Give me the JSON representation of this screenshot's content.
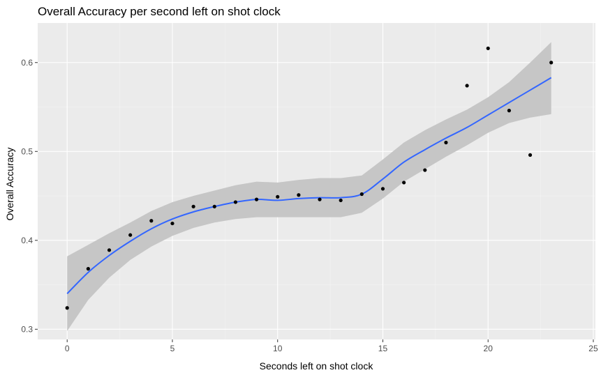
{
  "chart_data": {
    "type": "scatter",
    "title": "Overall Accuracy per second left on shot clock",
    "xlabel": "Seconds left on shot clock",
    "ylabel": "Overall Accuracy",
    "xlim": [
      -1.4,
      25.1
    ],
    "ylim": [
      0.2885,
      0.6445
    ],
    "x_ticks": [
      0,
      5,
      10,
      15,
      20,
      25
    ],
    "x_tick_labels": [
      "0",
      "5",
      "10",
      "15",
      "20",
      "25"
    ],
    "y_ticks": [
      0.3,
      0.4,
      0.5,
      0.6
    ],
    "y_tick_labels": [
      "0.3",
      "0.4",
      "0.5",
      "0.6"
    ],
    "grid": true,
    "points": {
      "x": [
        0,
        1,
        2,
        3,
        4,
        5,
        6,
        7,
        8,
        9,
        10,
        11,
        12,
        13,
        14,
        15,
        16,
        17,
        18,
        19,
        20,
        21,
        22,
        23
      ],
      "y": [
        0.324,
        0.368,
        0.389,
        0.406,
        0.422,
        0.419,
        0.438,
        0.438,
        0.443,
        0.446,
        0.449,
        0.451,
        0.446,
        0.445,
        0.452,
        0.458,
        0.465,
        0.479,
        0.51,
        0.574,
        0.616,
        0.546,
        0.496,
        0.6
      ]
    },
    "smooth": {
      "x": [
        0,
        1,
        2,
        3,
        4,
        5,
        6,
        7,
        8,
        9,
        10,
        11,
        12,
        13,
        14,
        15,
        16,
        17,
        18,
        19,
        20,
        21,
        22,
        23
      ],
      "y": [
        0.34,
        0.364,
        0.383,
        0.399,
        0.413,
        0.424,
        0.432,
        0.438,
        0.443,
        0.446,
        0.445,
        0.447,
        0.448,
        0.448,
        0.452,
        0.469,
        0.488,
        0.502,
        0.515,
        0.527,
        0.541,
        0.555,
        0.569,
        0.583
      ],
      "lower": [
        0.298,
        0.333,
        0.358,
        0.378,
        0.393,
        0.405,
        0.414,
        0.42,
        0.424,
        0.426,
        0.426,
        0.426,
        0.426,
        0.426,
        0.431,
        0.447,
        0.466,
        0.48,
        0.494,
        0.507,
        0.521,
        0.532,
        0.538,
        0.542
      ],
      "upper": [
        0.382,
        0.395,
        0.408,
        0.42,
        0.433,
        0.443,
        0.45,
        0.456,
        0.462,
        0.466,
        0.465,
        0.468,
        0.47,
        0.47,
        0.473,
        0.491,
        0.51,
        0.524,
        0.536,
        0.547,
        0.561,
        0.578,
        0.6,
        0.623
      ]
    },
    "colors": {
      "panel": "#ebebeb",
      "grid_major": "#ffffff",
      "grid_minor": "#f4f4f4",
      "ribbon": "#c6c6c6",
      "line": "#3366ff",
      "point": "#000000"
    }
  }
}
